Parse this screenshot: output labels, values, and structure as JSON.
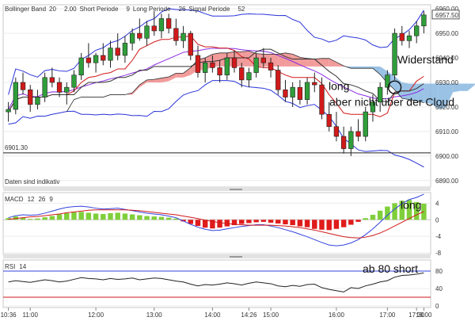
{
  "chart_data": [
    {
      "type": "candlestick",
      "panel": "price",
      "legend": [
        {
          "label": "Bollinger Band",
          "color": "#6a4cc0"
        },
        {
          "label": "20",
          "color": "#2a33d9"
        },
        {
          "label": "2.00",
          "color": "#2a33d9"
        },
        {
          "label": "Short Periode",
          "color": "#444444"
        },
        {
          "label": "9",
          "color": "#444444"
        },
        {
          "label": "Long Periode",
          "color": "#444444"
        },
        {
          "label": "26",
          "color": "#444444"
        },
        {
          "label": "Signal Periode",
          "color": "#444444"
        },
        {
          "label": "52",
          "color": "#444444"
        }
      ],
      "ylim": [
        6888,
        6961
      ],
      "y_ticks": [
        "6960.00",
        "6950.00",
        "6940.00",
        "6930.00",
        "6920.00",
        "6910.00",
        "6900.00",
        "6890.00"
      ],
      "last_price": "6957.50",
      "level_label": "6901.30",
      "level_value": 6901.3,
      "note": "Daten sind indikativ",
      "cloud_note": "Widerstand",
      "signal_notes": [
        "long",
        "aber nicht über der Cloud"
      ],
      "candles": [
        [
          6918,
          6922,
          6914,
          6919
        ],
        [
          6919,
          6932,
          6917,
          6930
        ],
        [
          6930,
          6934,
          6925,
          6927
        ],
        [
          6927,
          6929,
          6918,
          6921
        ],
        [
          6921,
          6927,
          6919,
          6924
        ],
        [
          6924,
          6934,
          6922,
          6932
        ],
        [
          6932,
          6936,
          6928,
          6930
        ],
        [
          6930,
          6932,
          6924,
          6926
        ],
        [
          6926,
          6930,
          6921,
          6928
        ],
        [
          6928,
          6935,
          6926,
          6933
        ],
        [
          6933,
          6942,
          6931,
          6940
        ],
        [
          6940,
          6946,
          6936,
          6938
        ],
        [
          6938,
          6942,
          6934,
          6941
        ],
        [
          6941,
          6946,
          6937,
          6939
        ],
        [
          6939,
          6947,
          6936,
          6944
        ],
        [
          6944,
          6950,
          6939,
          6941
        ],
        [
          6941,
          6949,
          6938,
          6946
        ],
        [
          6946,
          6952,
          6943,
          6950
        ],
        [
          6950,
          6956,
          6947,
          6948
        ],
        [
          6948,
          6955,
          6945,
          6953
        ],
        [
          6953,
          6959,
          6949,
          6951
        ],
        [
          6951,
          6958,
          6948,
          6956
        ],
        [
          6956,
          6958,
          6950,
          6952
        ],
        [
          6952,
          6956,
          6945,
          6947
        ],
        [
          6947,
          6953,
          6944,
          6950
        ],
        [
          6950,
          6951,
          6939,
          6941
        ],
        [
          6941,
          6945,
          6932,
          6934
        ],
        [
          6934,
          6940,
          6930,
          6938
        ],
        [
          6938,
          6941,
          6934,
          6936
        ],
        [
          6936,
          6939,
          6930,
          6933
        ],
        [
          6933,
          6942,
          6931,
          6940
        ],
        [
          6940,
          6943,
          6934,
          6936
        ],
        [
          6936,
          6938,
          6928,
          6931
        ],
        [
          6931,
          6936,
          6928,
          6934
        ],
        [
          6934,
          6942,
          6932,
          6940
        ],
        [
          6940,
          6944,
          6936,
          6938
        ],
        [
          6938,
          6940,
          6932,
          6935
        ],
        [
          6935,
          6937,
          6925,
          6927
        ],
        [
          6927,
          6931,
          6922,
          6924
        ],
        [
          6924,
          6930,
          6920,
          6928
        ],
        [
          6928,
          6931,
          6921,
          6923
        ],
        [
          6923,
          6932,
          6921,
          6930
        ],
        [
          6930,
          6934,
          6926,
          6929
        ],
        [
          6929,
          6932,
          6915,
          6917
        ],
        [
          6917,
          6922,
          6910,
          6912
        ],
        [
          6912,
          6918,
          6906,
          6908
        ],
        [
          6908,
          6912,
          6901,
          6903
        ],
        [
          6903,
          6912,
          6900,
          6910
        ],
        [
          6910,
          6915,
          6906,
          6908
        ],
        [
          6908,
          6920,
          6906,
          6918
        ],
        [
          6918,
          6925,
          6914,
          6922
        ],
        [
          6922,
          6930,
          6918,
          6928
        ],
        [
          6928,
          6935,
          6925,
          6933
        ],
        [
          6933,
          6952,
          6931,
          6950
        ],
        [
          6950,
          6953,
          6945,
          6947
        ],
        [
          6947,
          6951,
          6944,
          6949
        ],
        [
          6949,
          6955,
          6946,
          6953
        ],
        [
          6953,
          6959,
          6950,
          6957.5
        ]
      ]
    },
    {
      "type": "bar",
      "panel": "macd",
      "legend": [
        {
          "label": "MACD",
          "color": "#444444"
        },
        {
          "label": "12",
          "color": "#d11a1a"
        },
        {
          "label": "26",
          "color": "#d11a1a"
        },
        {
          "label": "9",
          "color": "#d11a1a"
        }
      ],
      "ylim": [
        -8,
        6
      ],
      "y_ticks": [
        "4",
        "0",
        "-4",
        "-8"
      ],
      "note": "long",
      "histogram": [
        0.4,
        0.8,
        0.5,
        0.2,
        0.3,
        0.6,
        0.9,
        1.3,
        1.6,
        1.8,
        1.9,
        1.7,
        1.5,
        1.4,
        1.6,
        1.7,
        1.5,
        1.3,
        1.1,
        0.9,
        0.8,
        0.7,
        0.5,
        0.3,
        -0.4,
        -1.0,
        -1.5,
        -1.9,
        -2.1,
        -1.9,
        -1.6,
        -1.3,
        -1.0,
        -0.8,
        -0.6,
        -0.5,
        -0.7,
        -0.9,
        -1.1,
        -1.3,
        -1.6,
        -1.8,
        -2.2,
        -2.4,
        -2.5,
        -2.2,
        -1.8,
        -1.2,
        -0.5,
        0.4,
        1.2,
        2.2,
        3.2,
        4.0,
        4.6,
        4.8,
        4.3,
        3.9
      ],
      "macd": [
        0.5,
        1.0,
        1.2,
        1.1,
        1.2,
        1.6,
        2.1,
        2.6,
        3.0,
        3.2,
        3.3,
        3.1,
        2.8,
        2.6,
        2.7,
        2.8,
        2.5,
        2.2,
        1.9,
        1.6,
        1.4,
        1.2,
        0.9,
        0.5,
        -0.3,
        -1.1,
        -1.8,
        -2.3,
        -2.6,
        -2.5,
        -2.2,
        -1.9,
        -1.6,
        -1.4,
        -1.2,
        -1.2,
        -1.5,
        -1.9,
        -2.4,
        -2.9,
        -3.5,
        -4.1,
        -4.8,
        -5.5,
        -6.1,
        -6.3,
        -6.1,
        -5.6,
        -4.8,
        -3.6,
        -2.2,
        -0.6,
        1.1,
        2.6,
        3.9,
        4.9,
        5.4,
        6.2
      ],
      "signal": [
        0.1,
        0.3,
        0.5,
        0.7,
        0.8,
        1.0,
        1.2,
        1.4,
        1.7,
        1.9,
        2.1,
        2.3,
        2.4,
        2.4,
        2.4,
        2.4,
        2.4,
        2.3,
        2.2,
        2.0,
        1.8,
        1.6,
        1.4,
        1.2,
        0.9,
        0.6,
        0.3,
        -0.1,
        -0.4,
        -0.7,
        -0.9,
        -1.1,
        -1.2,
        -1.3,
        -1.3,
        -1.3,
        -1.3,
        -1.4,
        -1.5,
        -1.7,
        -1.9,
        -2.2,
        -2.5,
        -2.9,
        -3.3,
        -3.7,
        -4.1,
        -4.3,
        -4.4,
        -4.2,
        -3.8,
        -3.2,
        -2.4,
        -1.5,
        -0.6,
        0.3,
        1.2,
        2.0
      ]
    },
    {
      "type": "line",
      "panel": "rsi",
      "legend": [
        {
          "label": "RSI",
          "color": "#444444"
        },
        {
          "label": "14",
          "color": "#444444"
        }
      ],
      "ylim": [
        0,
        100
      ],
      "y_ticks": [
        "80",
        "40",
        "0"
      ],
      "overbought": 80,
      "oversold": 20,
      "note": "ab 80 short",
      "values": [
        55,
        58,
        56,
        54,
        57,
        60,
        58,
        55,
        57,
        61,
        65,
        63,
        62,
        60,
        63,
        61,
        62,
        64,
        60,
        62,
        64,
        63,
        60,
        57,
        55,
        50,
        46,
        49,
        48,
        50,
        53,
        51,
        48,
        52,
        55,
        53,
        51,
        46,
        44,
        47,
        45,
        49,
        50,
        42,
        38,
        35,
        32,
        42,
        40,
        46,
        50,
        55,
        58,
        66,
        70,
        71,
        73,
        76
      ]
    }
  ],
  "x_ticks": [
    "10:36",
    "11:00",
    "12:00",
    "13:00",
    "14:00",
    "14:26",
    "15:00",
    "16:00",
    "17:00",
    "17:30",
    "18:00"
  ]
}
